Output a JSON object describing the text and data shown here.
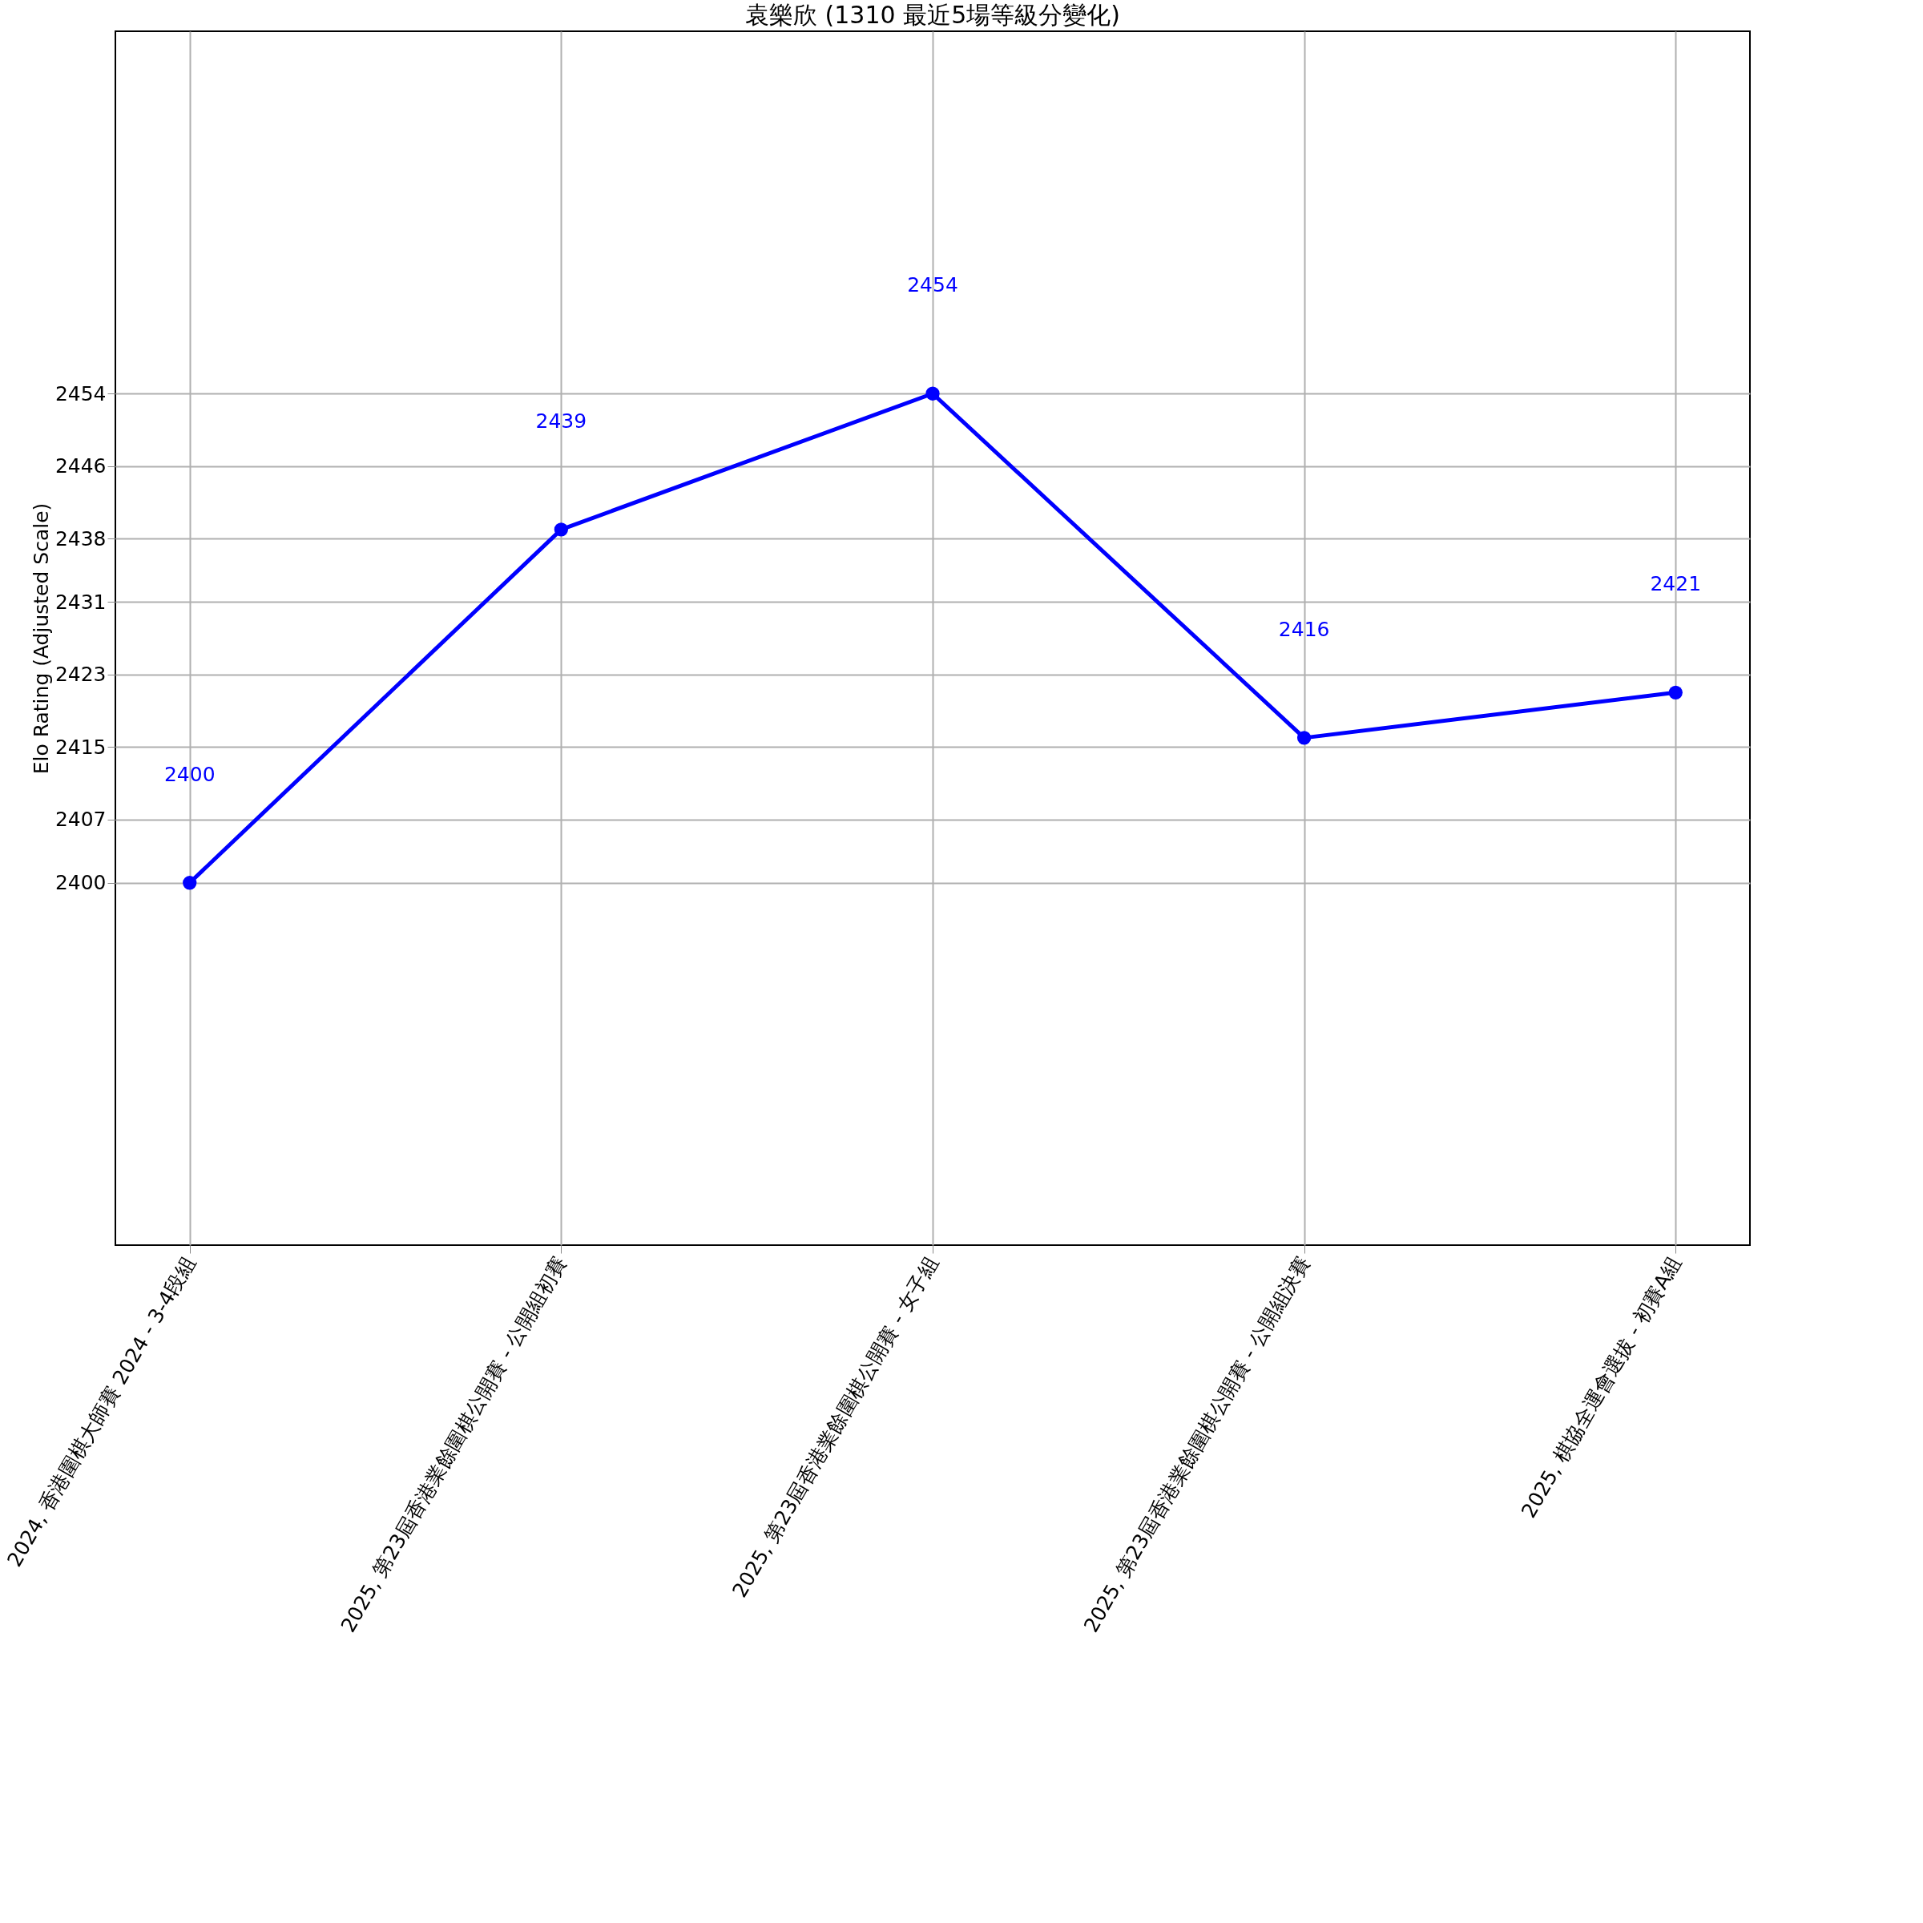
{
  "chart_data": {
    "type": "line",
    "title": "袁樂欣 (1310 最近5場等級分變化)",
    "ylabel": "Elo Rating (Adjusted Scale)",
    "categories": [
      "2024, 香港圍棋大師賽 2024 - 3-4段組",
      "2025, 第23屆香港業餘圍棋公開賽 - 公開組初賽",
      "2025, 第23屆香港業餘圍棋公開賽 - 女子組",
      "2025, 第23屆香港業餘圍棋公開賽 - 公開組決賽",
      "2025, 棋協全運會選拔 - 初賽A組"
    ],
    "series": [
      {
        "color": "#0000ff",
        "values": [
          2400,
          2439,
          2454,
          2416,
          2421
        ]
      }
    ],
    "ylim": [
      2360,
      2494
    ],
    "yticks": [
      2400,
      2407,
      2415,
      2423,
      2431,
      2438,
      2446,
      2454
    ],
    "annotations": [
      "2400",
      "2439",
      "2454",
      "2416",
      "2421"
    ],
    "grid": true,
    "marker": "circle",
    "line_style": "solid"
  }
}
